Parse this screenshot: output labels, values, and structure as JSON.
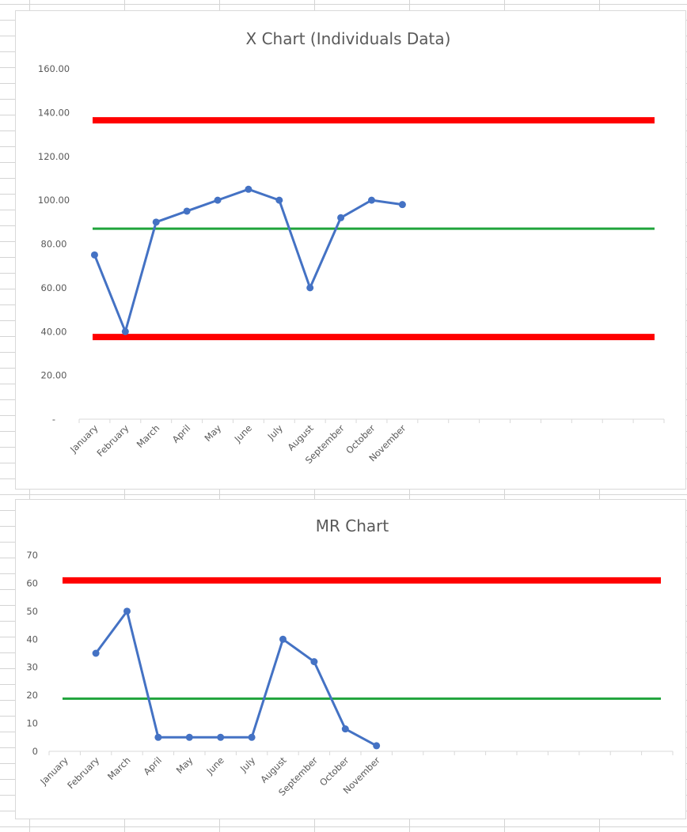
{
  "chart_data": [
    {
      "type": "line",
      "title": "X Chart (Individuals Data)",
      "ytick_labels": [
        "-",
        "20.00",
        "40.00",
        "60.00",
        "80.00",
        "100.00",
        "120.00",
        "140.00",
        "160.00"
      ],
      "ylim": [
        0,
        160
      ],
      "categories": [
        "January",
        "February",
        "March",
        "April",
        "May",
        "June",
        "July",
        "August",
        "September",
        "October",
        "November"
      ],
      "total_slots": 19,
      "series": [
        {
          "role": "data",
          "color": "#4472c4",
          "values": [
            75,
            40,
            90,
            95,
            100,
            105,
            100,
            60,
            92,
            100,
            98
          ]
        }
      ],
      "reference_lines": [
        {
          "role": "upper-limit",
          "value": 136.5,
          "color": "#ff0000"
        },
        {
          "role": "average",
          "value": 87,
          "color": "#20a43c"
        },
        {
          "role": "lower-limit",
          "value": 37.5,
          "color": "#ff0000"
        }
      ],
      "grid": false,
      "legend": "none"
    },
    {
      "type": "line",
      "title": "MR Chart",
      "ytick_labels": [
        "0",
        "10",
        "20",
        "30",
        "40",
        "50",
        "60",
        "70"
      ],
      "ylim": [
        0,
        70
      ],
      "categories": [
        "January",
        "February",
        "March",
        "April",
        "May",
        "June",
        "July",
        "August",
        "September",
        "October",
        "November"
      ],
      "total_slots": 20,
      "series": [
        {
          "role": "data",
          "color": "#4472c4",
          "values": [
            null,
            35,
            50,
            5,
            5,
            5,
            5,
            40,
            32,
            8,
            2
          ]
        }
      ],
      "reference_lines": [
        {
          "role": "upper-limit",
          "value": 61,
          "color": "#ff0000"
        },
        {
          "role": "average",
          "value": 18.8,
          "color": "#20a43c"
        }
      ],
      "grid": false,
      "legend": "none"
    }
  ]
}
